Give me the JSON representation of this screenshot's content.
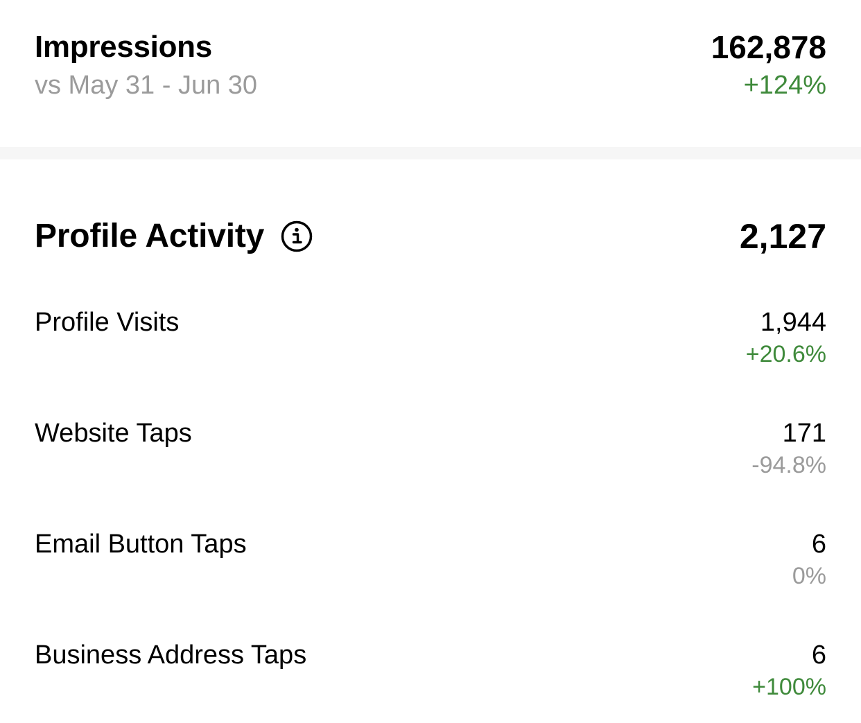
{
  "colors": {
    "positive": "#3f8a3b",
    "neutral": "#9b9b9b",
    "text": "#000000",
    "divider": "#f6f6f6"
  },
  "impressions": {
    "title": "Impressions",
    "comparison": "vs May 31 - Jun 30",
    "value": "162,878",
    "change": "+124%",
    "change_trend": "positive"
  },
  "profile_activity": {
    "title": "Profile Activity",
    "info_icon": "info-circle-icon",
    "total": "2,127",
    "rows": [
      {
        "label": "Profile Visits",
        "value": "1,944",
        "change": "+20.6%",
        "trend": "positive"
      },
      {
        "label": "Website Taps",
        "value": "171",
        "change": "-94.8%",
        "trend": "neutral"
      },
      {
        "label": "Email Button Taps",
        "value": "6",
        "change": "0%",
        "trend": "neutral"
      },
      {
        "label": "Business Address Taps",
        "value": "6",
        "change": "+100%",
        "trend": "positive"
      }
    ]
  }
}
